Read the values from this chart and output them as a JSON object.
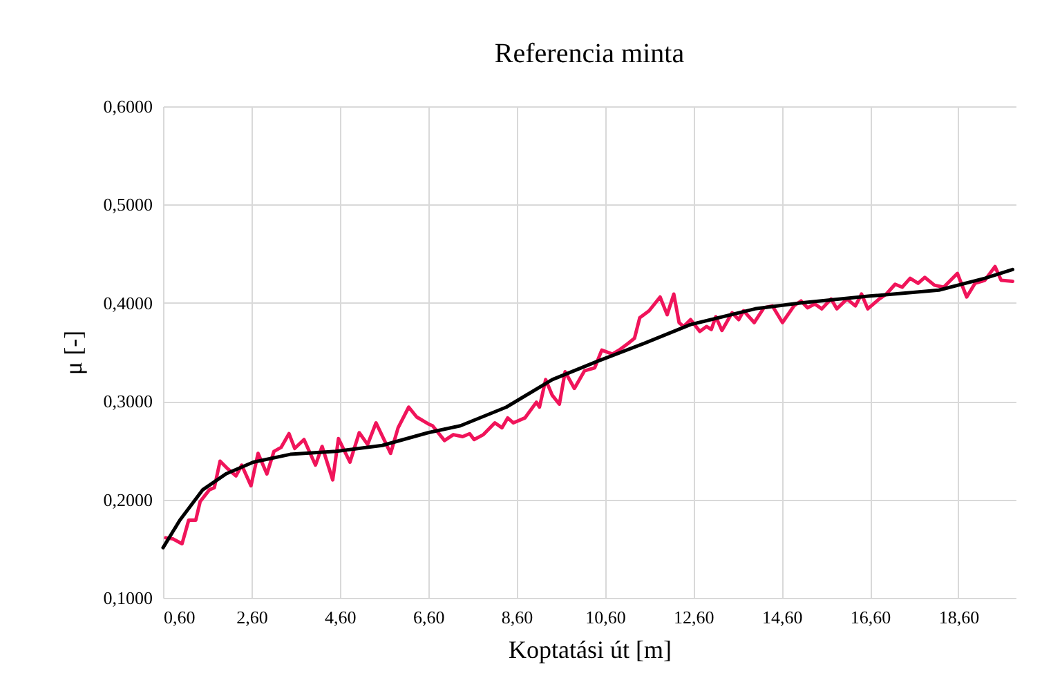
{
  "chart_data": {
    "type": "line",
    "title": "Referencia minta",
    "xlabel": "Koptatási út [m]",
    "ylabel": "μ [-]",
    "xlim": [
      0.6,
      19.9
    ],
    "xticks": [
      {
        "value": 0.6,
        "label": "0,60"
      },
      {
        "value": 2.6,
        "label": "2,60"
      },
      {
        "value": 4.6,
        "label": "4,60"
      },
      {
        "value": 6.6,
        "label": "6,60"
      },
      {
        "value": 8.6,
        "label": "8,60"
      },
      {
        "value": 10.6,
        "label": "10,60"
      },
      {
        "value": 12.6,
        "label": "12,60"
      },
      {
        "value": 14.6,
        "label": "14,60"
      },
      {
        "value": 16.6,
        "label": "16,60"
      },
      {
        "value": 18.6,
        "label": "18,60"
      }
    ],
    "ylim": [
      0.1,
      0.6
    ],
    "yticks": [
      {
        "value": 0.1,
        "label": "0,1000"
      },
      {
        "value": 0.2,
        "label": "0,2000"
      },
      {
        "value": 0.3,
        "label": "0,3000"
      },
      {
        "value": 0.4,
        "label": "0,4000"
      },
      {
        "value": 0.5,
        "label": "0,5000"
      },
      {
        "value": 0.6,
        "label": "0,6000"
      }
    ],
    "grid": true,
    "marker": "none",
    "line_style": "solid",
    "series": [
      {
        "color": "#f0145a",
        "x": [
          0.66,
          0.82,
          1.03,
          1.18,
          1.34,
          1.44,
          1.65,
          1.76,
          1.89,
          2.07,
          2.25,
          2.38,
          2.59,
          2.75,
          2.95,
          3.11,
          3.27,
          3.45,
          3.58,
          3.79,
          4.05,
          4.2,
          4.44,
          4.57,
          4.83,
          5.04,
          5.23,
          5.42,
          5.75,
          5.92,
          6.16,
          6.34,
          6.6,
          6.7,
          6.97,
          7.17,
          7.38,
          7.54,
          7.64,
          7.85,
          8.11,
          8.27,
          8.4,
          8.53,
          8.79,
          9.05,
          9.12,
          9.26,
          9.41,
          9.57,
          9.7,
          9.91,
          10.14,
          10.37,
          10.53,
          10.77,
          10.92,
          11.13,
          11.27,
          11.39,
          11.6,
          11.85,
          12.01,
          12.16,
          12.28,
          12.38,
          12.54,
          12.75,
          12.9,
          13.01,
          13.11,
          13.25,
          13.48,
          13.63,
          13.74,
          13.98,
          14.2,
          14.39,
          14.62,
          14.88,
          15.04,
          15.19,
          15.35,
          15.51,
          15.72,
          15.85,
          16.08,
          16.27,
          16.41,
          16.55,
          16.81,
          16.97,
          17.17,
          17.33,
          17.51,
          17.69,
          17.84,
          18.06,
          18.27,
          18.58,
          18.79,
          18.98,
          19.2,
          19.43,
          19.57,
          19.83
        ],
        "values": [
          0.161,
          0.16,
          0.155,
          0.179,
          0.179,
          0.198,
          0.21,
          0.212,
          0.239,
          0.231,
          0.224,
          0.235,
          0.214,
          0.247,
          0.226,
          0.249,
          0.253,
          0.267,
          0.252,
          0.261,
          0.235,
          0.254,
          0.22,
          0.262,
          0.238,
          0.268,
          0.256,
          0.278,
          0.247,
          0.273,
          0.294,
          0.284,
          0.277,
          0.275,
          0.26,
          0.266,
          0.264,
          0.267,
          0.261,
          0.266,
          0.278,
          0.273,
          0.283,
          0.278,
          0.283,
          0.299,
          0.294,
          0.322,
          0.306,
          0.297,
          0.33,
          0.313,
          0.331,
          0.334,
          0.352,
          0.348,
          0.352,
          0.359,
          0.364,
          0.385,
          0.392,
          0.406,
          0.388,
          0.409,
          0.38,
          0.376,
          0.383,
          0.371,
          0.376,
          0.373,
          0.386,
          0.372,
          0.39,
          0.383,
          0.392,
          0.38,
          0.395,
          0.397,
          0.38,
          0.397,
          0.402,
          0.395,
          0.399,
          0.394,
          0.404,
          0.394,
          0.404,
          0.397,
          0.409,
          0.394,
          0.404,
          0.409,
          0.419,
          0.416,
          0.425,
          0.42,
          0.426,
          0.418,
          0.416,
          0.43,
          0.406,
          0.42,
          0.423,
          0.437,
          0.423,
          0.422
        ]
      },
      {
        "color": "#000000",
        "x": [
          0.6,
          0.98,
          1.5,
          2.02,
          2.64,
          3.48,
          4.52,
          5.56,
          6.6,
          7.33,
          8.37,
          9.41,
          10.45,
          11.5,
          12.54,
          14.0,
          15.04,
          16.6,
          18.16,
          19.2,
          19.83
        ],
        "values": [
          0.151,
          0.179,
          0.21,
          0.226,
          0.238,
          0.246,
          0.249,
          0.255,
          0.268,
          0.275,
          0.294,
          0.322,
          0.341,
          0.359,
          0.378,
          0.394,
          0.4,
          0.407,
          0.413,
          0.425,
          0.434
        ]
      }
    ]
  }
}
